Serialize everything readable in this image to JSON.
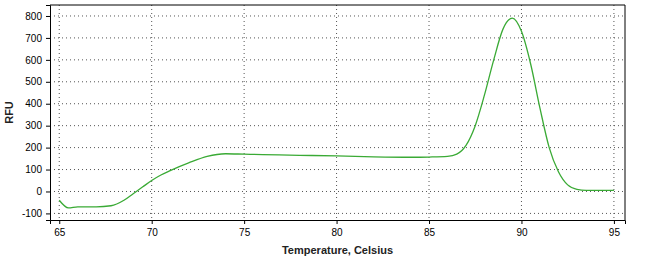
{
  "chart_data": {
    "type": "line",
    "x_label": "Temperature, Celsius",
    "y_label": "RFU",
    "x": [
      65,
      65.5,
      66,
      67,
      67.8,
      68.5,
      69,
      69.5,
      70,
      70.5,
      71,
      72,
      73,
      74,
      75,
      76,
      78,
      80,
      82,
      84,
      85,
      86,
      86.5,
      87,
      87.5,
      88,
      88.5,
      89,
      89.5,
      90,
      90.5,
      91,
      91.5,
      92,
      92.5,
      93,
      93.5,
      94,
      95
    ],
    "values": [
      -40,
      -75,
      -70,
      -70,
      -65,
      -40,
      -10,
      20,
      50,
      75,
      95,
      130,
      160,
      172,
      170,
      168,
      165,
      162,
      158,
      156,
      157,
      160,
      170,
      210,
      300,
      440,
      600,
      740,
      790,
      730,
      580,
      380,
      200,
      90,
      30,
      10,
      5,
      5,
      5
    ],
    "color": "#3aaa35",
    "xlim": [
      64.5,
      95.6
    ],
    "ylim": [
      -130,
      850
    ],
    "xticks": [
      65,
      70,
      75,
      80,
      85,
      90,
      95
    ],
    "yticks": [
      -100,
      0,
      100,
      200,
      300,
      400,
      500,
      600,
      700,
      800
    ],
    "grid": true,
    "line_style": "solid"
  }
}
